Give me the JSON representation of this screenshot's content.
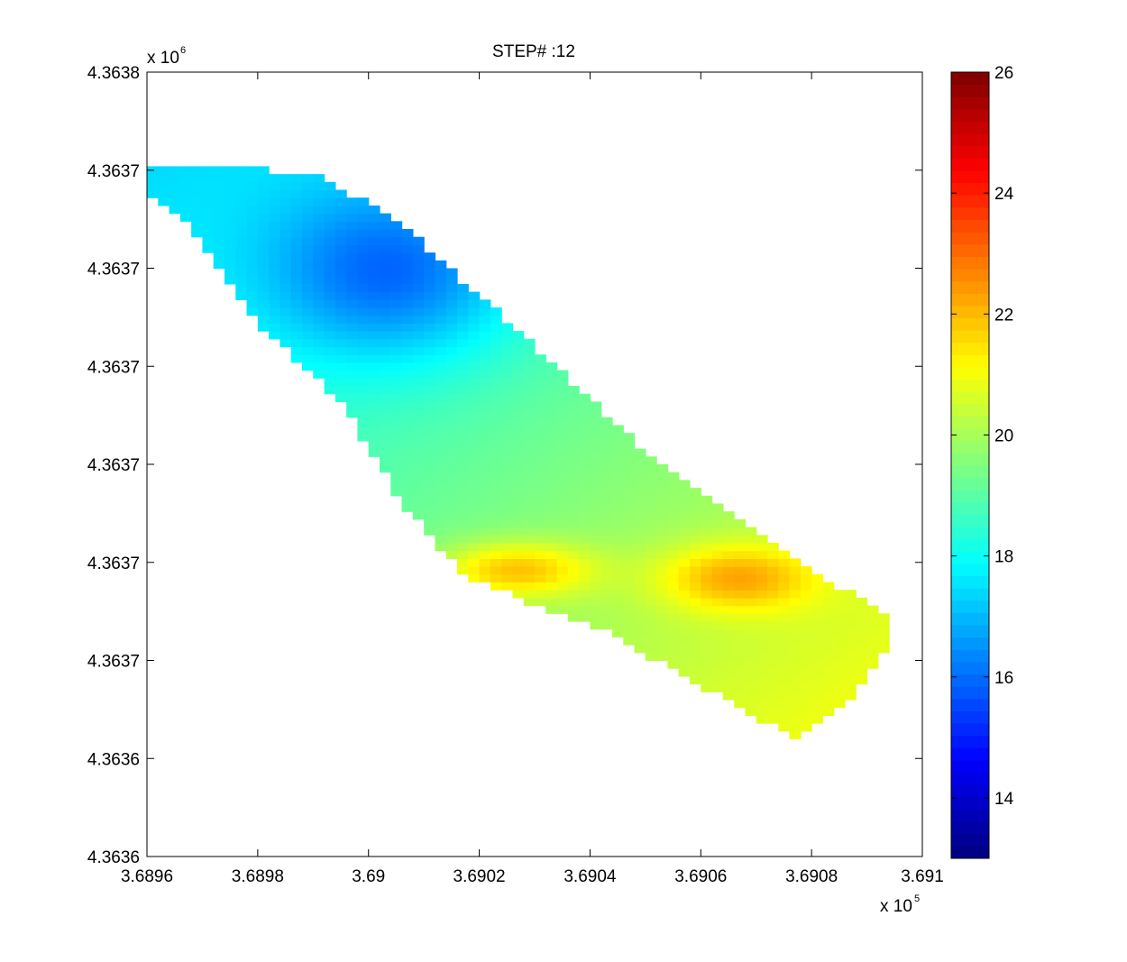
{
  "chart_data": {
    "type": "heatmap",
    "title": "STEP# :12",
    "xlabel": "",
    "ylabel": "",
    "x_axis": {
      "range": [
        368960,
        369100
      ],
      "ticks": [
        368960,
        368980,
        369000,
        369020,
        369040,
        369060,
        369080,
        369100
      ],
      "tick_labels": [
        "3.6896",
        "3.6898",
        "3.69",
        "3.6902",
        "3.6904",
        "3.6906",
        "3.6908",
        "3.691"
      ],
      "multiplier_label": "x 10",
      "multiplier_exponent": "5"
    },
    "y_axis": {
      "range": [
        4363600,
        4363800
      ],
      "ticks": [
        4363600,
        4363620,
        4363640,
        4363660,
        4363680,
        4363700,
        4363720,
        4363740,
        4363760,
        4363780,
        4363800
      ],
      "tick_labels": [
        "4.3636",
        "4.3636",
        "4.3637",
        "4.3637",
        "4.3637",
        "4.3637",
        "4.3637",
        "4.3637",
        "4.3638"
      ],
      "tick_values_labeled": [
        4363600,
        4363620,
        4363640,
        4363660,
        4363680,
        4363700,
        4363720,
        4363740,
        4363800
      ],
      "multiplier_label": "x 10",
      "multiplier_exponent": "6"
    },
    "colorbar": {
      "colormap": "jet",
      "range": [
        13,
        26
      ],
      "ticks": [
        14,
        16,
        18,
        20,
        22,
        24,
        26
      ],
      "tick_labels": [
        "14",
        "16",
        "18",
        "20",
        "22",
        "24",
        "26"
      ]
    },
    "grid": false,
    "cell_size_data_units": 2,
    "region_polygon": [
      [
        368961,
        4363776
      ],
      [
        368976,
        4363776
      ],
      [
        368990,
        4363774
      ],
      [
        369004,
        4363764
      ],
      [
        369016,
        4363748
      ],
      [
        369024,
        4363738
      ],
      [
        369036,
        4363722
      ],
      [
        369048,
        4363706
      ],
      [
        369060,
        4363692
      ],
      [
        369070,
        4363684
      ],
      [
        369080,
        4363672
      ],
      [
        369092,
        4363664
      ],
      [
        369095,
        4363658
      ],
      [
        369092,
        4363650
      ],
      [
        369088,
        4363641
      ],
      [
        369077,
        4363630
      ],
      [
        369067,
        4363638
      ],
      [
        369057,
        4363646
      ],
      [
        369042,
        4363658
      ],
      [
        369030,
        4363664
      ],
      [
        369017,
        4363672
      ],
      [
        369006,
        4363690
      ],
      [
        368995,
        4363716
      ],
      [
        368980,
        4363736
      ],
      [
        368968,
        4363760
      ],
      [
        368961,
        4363768
      ]
    ],
    "value_field_peaks": [
      {
        "x": 369003,
        "y": 4363750,
        "value": 15.9,
        "spread_x": 16,
        "spread_y": 16
      },
      {
        "x": 369067,
        "y": 4363671,
        "value": 22.3,
        "spread_x": 10,
        "spread_y": 6
      },
      {
        "x": 369027,
        "y": 4363673,
        "value": 21.9,
        "spread_x": 10,
        "spread_y": 5
      }
    ],
    "value_field_base": 20.0,
    "value_field_gradient": {
      "direction_deg": -45,
      "value_at_upper_left": 17.4,
      "value_at_lower_right": 21.0
    }
  }
}
